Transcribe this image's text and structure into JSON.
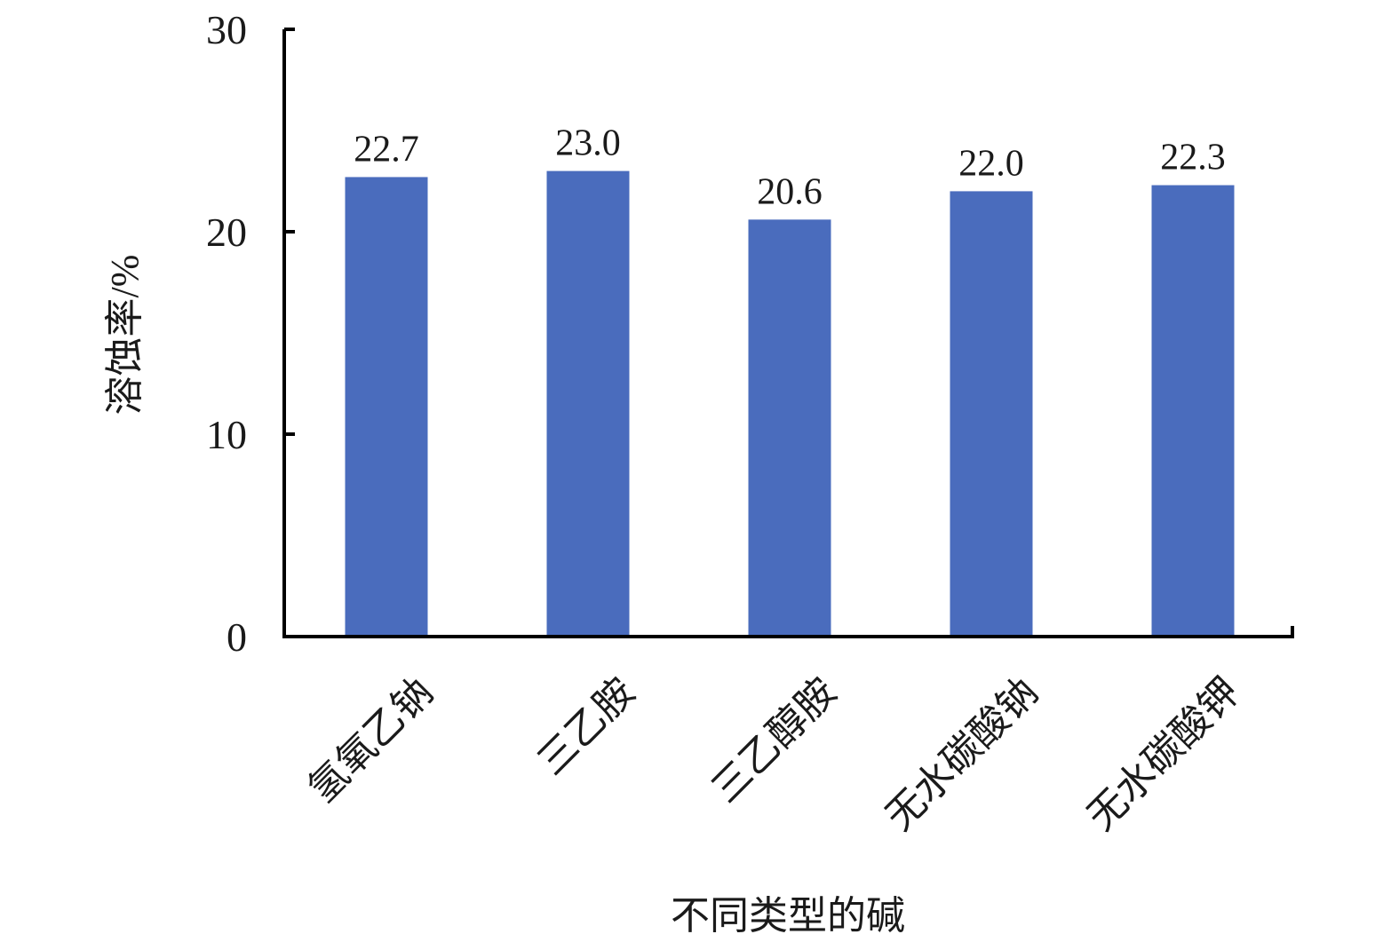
{
  "chart_data": {
    "type": "bar",
    "categories": [
      "氢氧乙钠",
      "三乙胺",
      "三乙醇胺",
      "无水碳酸钠",
      "无水碳酸钾"
    ],
    "values": [
      22.7,
      23.0,
      20.6,
      22.0,
      22.3
    ],
    "data_labels": [
      "22.7",
      "23.0",
      "20.6",
      "22.0",
      "22.3"
    ],
    "title": "",
    "xlabel": "不同类型的碱",
    "ylabel": "溶蚀率/%",
    "ylim": [
      0,
      30
    ],
    "yticks": [
      0,
      10,
      20,
      30
    ],
    "ytick_labels": [
      "0",
      "10",
      "20",
      "30"
    ],
    "grid": false,
    "bar_color": "#4a6cbd",
    "axis_color": "#000000"
  }
}
